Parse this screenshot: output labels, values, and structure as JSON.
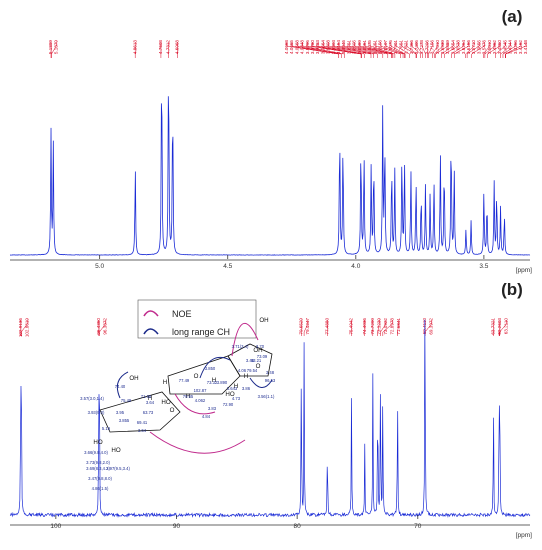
{
  "chart_data": [
    {
      "panel": "(a)",
      "type": "line",
      "unit": "[ppm]",
      "xlim": [
        5.35,
        3.32
      ],
      "ticks": [
        "5.0",
        "4.5",
        "4.0",
        "3.5"
      ],
      "tick_values": [
        5.0,
        4.5,
        4.0,
        3.5
      ],
      "peak_labels": [
        "5.1899",
        "5.1879",
        "4.8613",
        "4.7608",
        "4.7312",
        "4.6968",
        "4.0668",
        "4.0665",
        "4.0568",
        "4.0448",
        "3.9795",
        "3.9780",
        "3.9783",
        "3.9664",
        "3.9408",
        "3.9303",
        "3.9154",
        "3.8946",
        "3.8751",
        "3.8605",
        "3.8589",
        "3.8551",
        "3.8475",
        "3.8251",
        "3.8156",
        "3.8107",
        "3.8075",
        "3.7901",
        "3.7651",
        "3.7621",
        "3.7466",
        "3.7405",
        "3.7278",
        "3.7206",
        "3.7156",
        "3.7010",
        "3.6939",
        "3.6889",
        "3.6654",
        "3.6538",
        "3.6264",
        "3.6156",
        "3.5710",
        "3.5655",
        "3.5476",
        "3.5010",
        "3.4962",
        "3.4860",
        "3.4545",
        "3.4344",
        "3.4255",
        "3.4162",
        "3.4148"
      ],
      "peaks": [
        {
          "x": 5.19,
          "y": 0.58
        },
        {
          "x": 5.181,
          "y": 0.52
        },
        {
          "x": 4.861,
          "y": 0.42
        },
        {
          "x": 4.758,
          "y": 1.0
        },
        {
          "x": 4.731,
          "y": 1.0
        },
        {
          "x": 4.715,
          "y": 0.78
        },
        {
          "x": 4.063,
          "y": 0.62
        },
        {
          "x": 4.05,
          "y": 0.55
        },
        {
          "x": 3.98,
          "y": 0.54
        },
        {
          "x": 3.968,
          "y": 0.5
        },
        {
          "x": 3.94,
          "y": 0.42
        },
        {
          "x": 3.93,
          "y": 0.46
        },
        {
          "x": 3.895,
          "y": 0.68
        },
        {
          "x": 3.887,
          "y": 0.55
        },
        {
          "x": 3.86,
          "y": 0.44
        },
        {
          "x": 3.848,
          "y": 0.4
        },
        {
          "x": 3.82,
          "y": 0.48
        },
        {
          "x": 3.81,
          "y": 0.45
        },
        {
          "x": 3.785,
          "y": 0.4
        },
        {
          "x": 3.765,
          "y": 0.36
        },
        {
          "x": 3.745,
          "y": 0.3
        },
        {
          "x": 3.728,
          "y": 0.33
        },
        {
          "x": 3.71,
          "y": 0.28
        },
        {
          "x": 3.695,
          "y": 0.36
        },
        {
          "x": 3.67,
          "y": 0.48
        },
        {
          "x": 3.655,
          "y": 0.44
        },
        {
          "x": 3.628,
          "y": 0.6
        },
        {
          "x": 3.616,
          "y": 0.42
        },
        {
          "x": 3.57,
          "y": 0.12
        },
        {
          "x": 3.55,
          "y": 0.16
        },
        {
          "x": 3.5,
          "y": 0.3
        },
        {
          "x": 3.488,
          "y": 0.26
        },
        {
          "x": 3.46,
          "y": 0.34
        },
        {
          "x": 3.45,
          "y": 0.3
        },
        {
          "x": 3.435,
          "y": 0.22
        },
        {
          "x": 3.42,
          "y": 0.2
        }
      ]
    },
    {
      "panel": "(b)",
      "type": "line",
      "unit": "[ppm]",
      "xlim": [
        103.8,
        60.7
      ],
      "ticks": [
        "100",
        "90",
        "80",
        "70"
      ],
      "tick_values": [
        100,
        90,
        80,
        70
      ],
      "peak_labels": [
        "102.9136",
        "102.8619",
        "96.4350",
        "96.3872",
        "79.6529",
        "79.4247",
        "77.4880",
        "75.4942",
        "74.4036",
        "73.7299",
        "73.3239",
        "73.0922",
        "72.8978",
        "71.6841",
        "69.4110",
        "69.3972",
        "63.7321",
        "63.2603",
        "63.2110"
      ],
      "peaks": [
        {
          "x": 102.91,
          "y": 0.83
        },
        {
          "x": 102.86,
          "y": 0.79
        },
        {
          "x": 96.44,
          "y": 0.7
        },
        {
          "x": 96.39,
          "y": 0.68
        },
        {
          "x": 79.65,
          "y": 0.95
        },
        {
          "x": 79.42,
          "y": 0.92
        },
        {
          "x": 77.49,
          "y": 0.47
        },
        {
          "x": 75.49,
          "y": 0.68
        },
        {
          "x": 74.4,
          "y": 0.37
        },
        {
          "x": 73.73,
          "y": 0.76
        },
        {
          "x": 73.32,
          "y": 0.87
        },
        {
          "x": 73.09,
          "y": 0.88
        },
        {
          "x": 72.9,
          "y": 0.72
        },
        {
          "x": 71.68,
          "y": 0.77
        },
        {
          "x": 69.41,
          "y": 0.84
        },
        {
          "x": 69.4,
          "y": 0.8
        },
        {
          "x": 63.73,
          "y": 0.7
        },
        {
          "x": 63.26,
          "y": 0.72
        },
        {
          "x": 63.21,
          "y": 0.69
        }
      ]
    }
  ],
  "legend": {
    "noe": "NOE",
    "long_range": "long range CH"
  },
  "structure_labels": [
    "OH",
    "OH",
    "OH",
    "HO",
    "HO",
    "HO",
    "HO",
    "O",
    "O",
    "O",
    "H",
    "H",
    "H",
    "H",
    "H",
    "H",
    "102.87",
    "96.53",
    "73.09",
    "79.54",
    "71.68",
    "63.73",
    "75.49",
    "69.41",
    "73.32",
    "72.90",
    "74.40",
    "77.49",
    "79.65",
    "63.21",
    "4.062",
    "3.855",
    "3.64",
    "3.64",
    "3.95",
    "5.19",
    "3.850",
    "3.890",
    "4.06",
    "3.643",
    "4.73",
    "3.83",
    "3.70",
    "3.86",
    "3.45",
    "3.48",
    "3.56(1.1)",
    "3.71(3.4)",
    "4.84",
    "3.57(3.0,1.4)",
    "3.93(9.0)",
    "3.66(9.8,4.0)",
    "3.73(9.8,2.0)",
    "3.69(8.3,4.2)",
    "3.47(9.8,8.0)",
    "3.97(9.5,3.4)",
    "4.86(1.5)"
  ],
  "colors": {
    "trace": "#1a2bd6",
    "label": "#d8001e",
    "axis": "#333333",
    "noe": "#c02a8c",
    "long_range": "#1b2a8a",
    "struct_num": "#1c2b8f"
  }
}
